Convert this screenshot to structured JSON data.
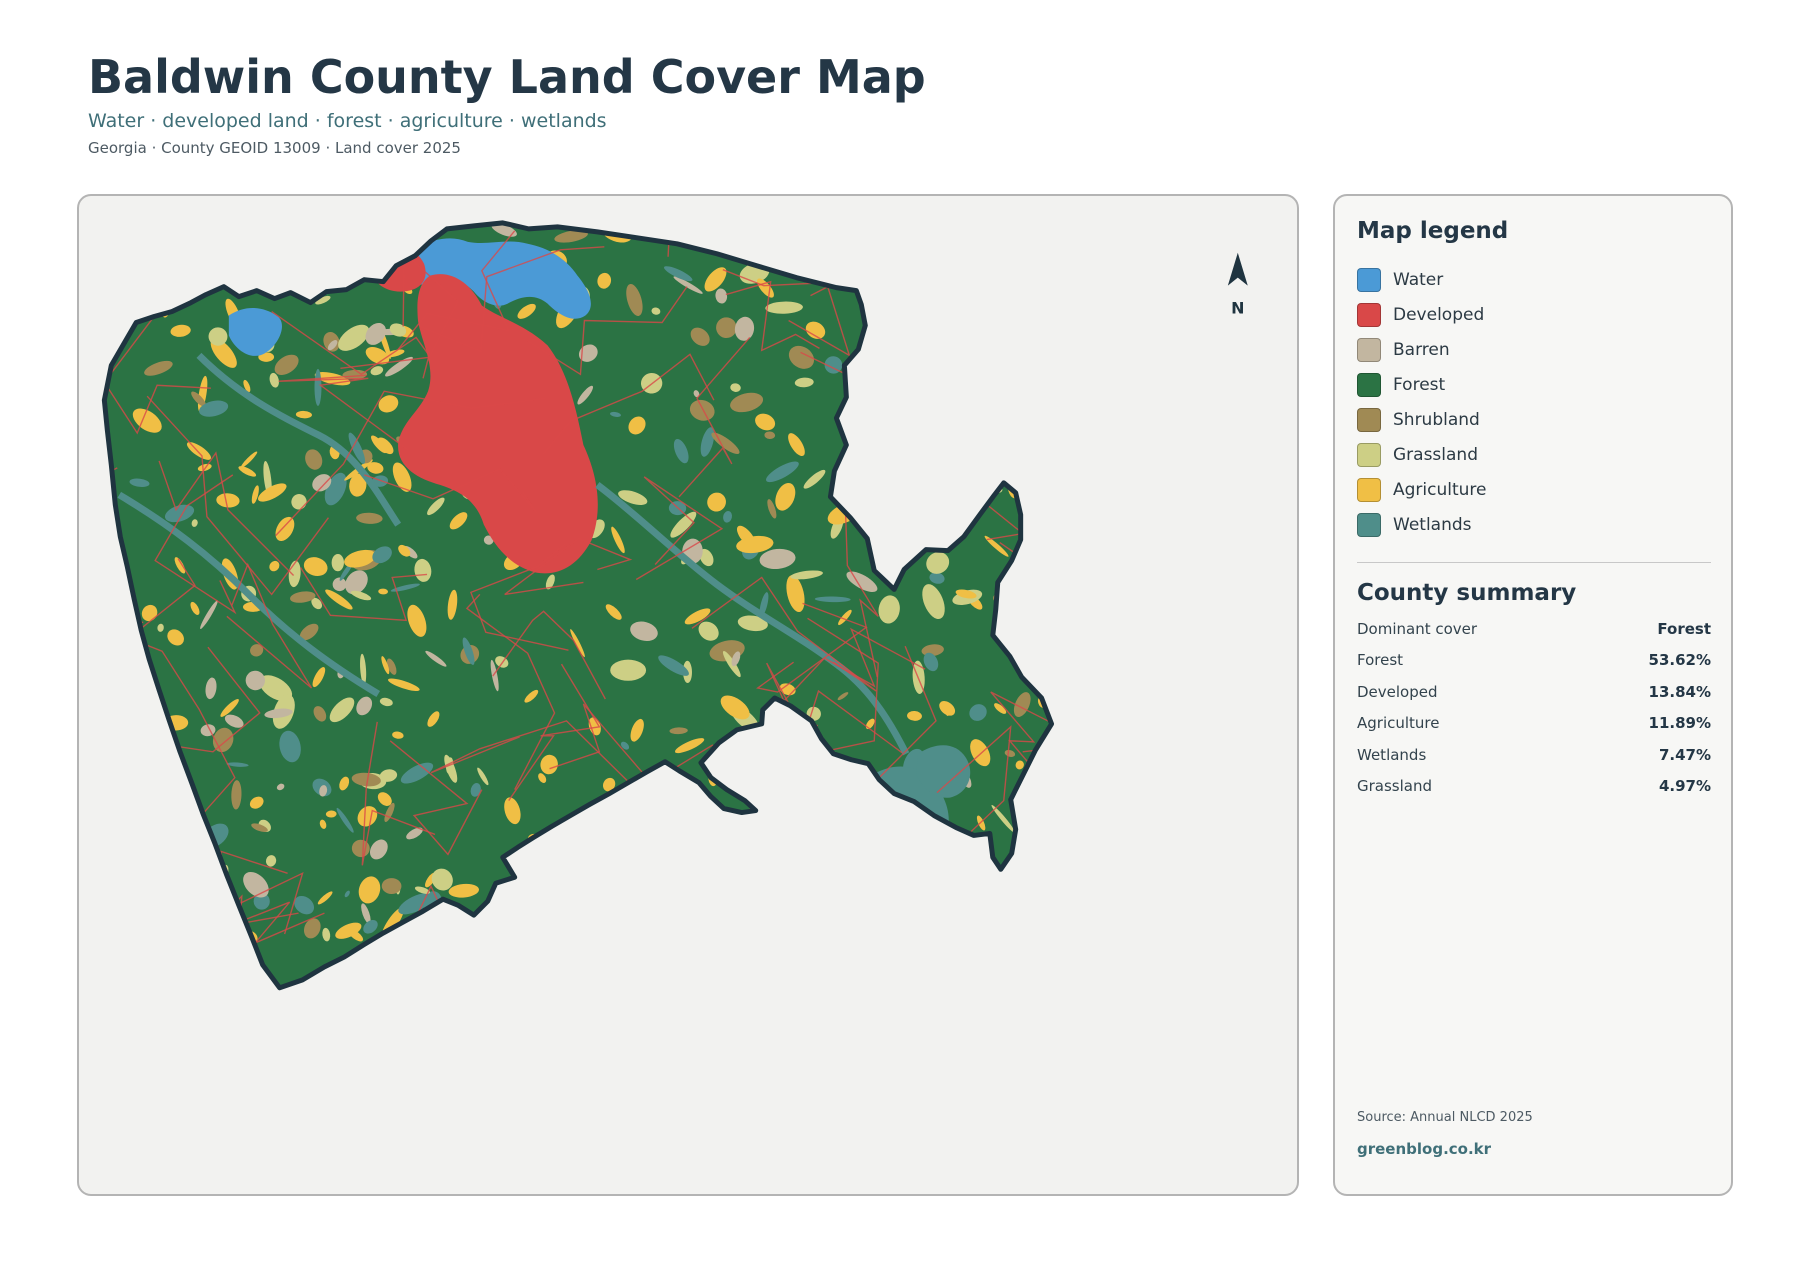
{
  "header": {
    "title": "Baldwin County Land Cover Map",
    "subtitle": "Water · developed land · forest · agriculture · wetlands",
    "meta": "Georgia · County GEOID 13009 · Land cover 2025"
  },
  "map": {
    "north_label": "N",
    "colors": {
      "water": "#4b9ad6",
      "developed": "#d94848",
      "barren": "#c2b6a0",
      "forest": "#2b7344",
      "shrubland": "#a08a54",
      "grassland": "#cdcf85",
      "agriculture": "#f0bf45",
      "wetlands": "#4f8e8a",
      "outline": "#1f3440",
      "background": "#f2f2f0"
    }
  },
  "legend": {
    "heading": "Map legend",
    "items": [
      {
        "label": "Water",
        "color": "#4b9ad6"
      },
      {
        "label": "Developed",
        "color": "#d94848"
      },
      {
        "label": "Barren",
        "color": "#c2b6a0"
      },
      {
        "label": "Forest",
        "color": "#2b7344"
      },
      {
        "label": "Shrubland",
        "color": "#a08a54"
      },
      {
        "label": "Grassland",
        "color": "#cdcf85"
      },
      {
        "label": "Agriculture",
        "color": "#f0bf45"
      },
      {
        "label": "Wetlands",
        "color": "#4f8e8a"
      }
    ]
  },
  "summary": {
    "heading": "County summary",
    "rows": [
      {
        "key": "Dominant cover",
        "value": "Forest"
      },
      {
        "key": "Forest",
        "value": "53.62%"
      },
      {
        "key": "Developed",
        "value": "13.84%"
      },
      {
        "key": "Agriculture",
        "value": "11.89%"
      },
      {
        "key": "Wetlands",
        "value": "7.47%"
      },
      {
        "key": "Grassland",
        "value": "4.97%"
      }
    ]
  },
  "footer": {
    "source": "Source: Annual NLCD 2025",
    "site": "greenblog.co.kr"
  }
}
